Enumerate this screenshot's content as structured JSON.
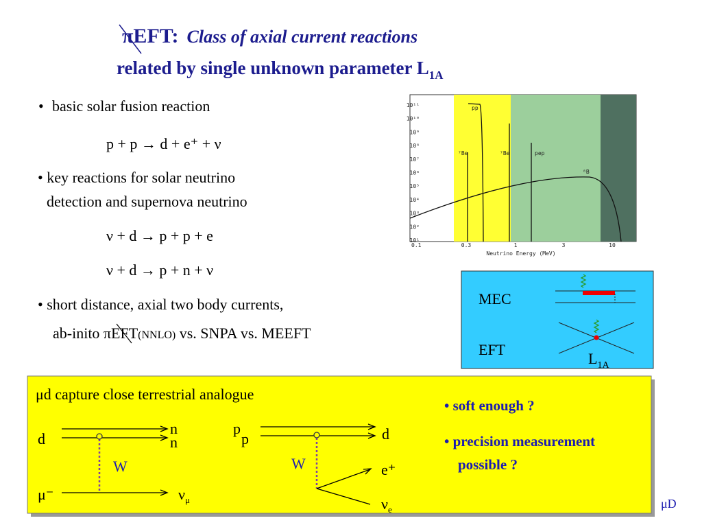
{
  "title": {
    "lead": "πEFT:",
    "rest": "Class of axial current reactions",
    "line2": "related by single unknown parameter L",
    "line2_sub": "1A"
  },
  "bullets": [
    {
      "mark": "•",
      "text": "basic solar fusion reaction",
      "equations": [
        "p + p → d + e⁺ + ν"
      ]
    },
    {
      "lines": [
        "• key reactions for solar neutrino",
        "detection and supernova neutrino"
      ],
      "equations": [
        "ν + d → p + p + e",
        "ν + d  → p + n + ν"
      ]
    },
    {
      "line1": "• short distance, axial  two body currents,",
      "line2_start": "ab-inito πEFT",
      "line2_small": "(NNLO)",
      "line2_end": " vs. SNPA vs. MEEFT"
    }
  ],
  "figure": {
    "yticks": [
      "10¹¹",
      "10¹⁰",
      "10⁹",
      "10⁸",
      "10⁷",
      "10⁶",
      "10⁵",
      "10⁴",
      "10³",
      "10²",
      "10¹"
    ],
    "xticks": [
      "0.1",
      "0.3",
      "1",
      "3",
      "10"
    ],
    "xlabel": "Neutrino Energy (MeV)",
    "curve_labels": [
      "pp",
      "⁷Be",
      "⁷Be",
      "pep",
      "⁸B"
    ]
  },
  "currents_box": {
    "mec": "MEC",
    "eft": "EFT",
    "param": "L",
    "param_sub": "1A"
  },
  "capture_box": {
    "heading": "μd capture close terrestrial analogue",
    "diagram1": {
      "in_top": "d",
      "out_top": [
        "n",
        "n"
      ],
      "boson": "W",
      "in_bottom": "μ⁻",
      "out_bottom": "ν",
      "out_bottom_sub": "μ"
    },
    "diagram2": {
      "in_top": [
        "p",
        "p"
      ],
      "out_top": "d",
      "boson": "W",
      "out_1": "e⁺",
      "out_2": "ν",
      "out_2_sub": "e"
    },
    "questions": [
      "• soft enough ?",
      "• precision measurement",
      "possible ?"
    ]
  },
  "footer": "μD"
}
